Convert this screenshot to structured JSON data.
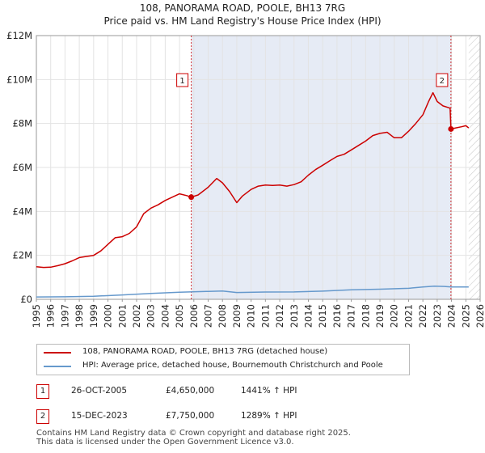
{
  "chart_data": {
    "type": "line",
    "title": "108, PANORAMA ROAD, POOLE, BH13 7RG",
    "subtitle": "Price paid vs. HM Land Registry's House Price Index (HPI)",
    "x_range": [
      1995,
      2026
    ],
    "ylim": [
      0,
      12000000
    ],
    "y_ticks": [
      0,
      2000000,
      4000000,
      6000000,
      8000000,
      10000000,
      12000000
    ],
    "y_tick_labels": [
      "£0",
      "£2M",
      "£4M",
      "£6M",
      "£8M",
      "£10M",
      "£12M"
    ],
    "x_ticks": [
      1995,
      1996,
      1997,
      1998,
      1999,
      2000,
      2001,
      2002,
      2003,
      2004,
      2005,
      2006,
      2007,
      2008,
      2009,
      2010,
      2011,
      2012,
      2013,
      2014,
      2015,
      2016,
      2017,
      2018,
      2019,
      2020,
      2021,
      2022,
      2023,
      2024,
      2025,
      2026
    ],
    "grid": true,
    "shaded_range": [
      2005.82,
      2023.96
    ],
    "future_hatch_from": 2025.2,
    "series": [
      {
        "name": "108, PANORAMA ROAD, POOLE, BH13 7RG (detached house)",
        "color": "#cc0000",
        "x": [
          1995.0,
          1995.5,
          1996.0,
          1996.5,
          1997.0,
          1997.5,
          1998.0,
          1998.5,
          1999.0,
          1999.5,
          2000.0,
          2000.5,
          2001.0,
          2001.5,
          2002.0,
          2002.5,
          2003.0,
          2003.5,
          2004.0,
          2004.5,
          2005.0,
          2005.5,
          2005.82,
          2006.3,
          2007.0,
          2007.6,
          2008.0,
          2008.5,
          2009.0,
          2009.4,
          2010.0,
          2010.5,
          2011.0,
          2011.5,
          2012.0,
          2012.5,
          2013.0,
          2013.5,
          2014.0,
          2014.5,
          2015.0,
          2015.5,
          2016.0,
          2016.5,
          2017.0,
          2017.5,
          2018.0,
          2018.5,
          2019.0,
          2019.5,
          2020.0,
          2020.5,
          2021.0,
          2021.5,
          2022.0,
          2022.4,
          2022.7,
          2023.0,
          2023.4,
          2023.9,
          2023.96,
          2024.3,
          2024.7,
          2025.0,
          2025.2
        ],
        "values": [
          1480000,
          1450000,
          1460000,
          1530000,
          1620000,
          1750000,
          1900000,
          1950000,
          2000000,
          2200000,
          2500000,
          2800000,
          2850000,
          3000000,
          3300000,
          3900000,
          4150000,
          4300000,
          4500000,
          4650000,
          4800000,
          4720000,
          4650000,
          4750000,
          5100000,
          5500000,
          5300000,
          4900000,
          4400000,
          4700000,
          5000000,
          5150000,
          5200000,
          5180000,
          5200000,
          5150000,
          5220000,
          5350000,
          5650000,
          5900000,
          6100000,
          6300000,
          6500000,
          6600000,
          6800000,
          7000000,
          7200000,
          7450000,
          7550000,
          7600000,
          7350000,
          7350000,
          7650000,
          8000000,
          8400000,
          9000000,
          9400000,
          9000000,
          8800000,
          8700000,
          7750000,
          7800000,
          7850000,
          7900000,
          7800000
        ]
      },
      {
        "name": "HPI: Average price, detached house, Bournemouth Christchurch and Poole",
        "color": "#6699cc",
        "x": [
          1995,
          1997,
          1999,
          2001,
          2003,
          2005,
          2007,
          2008,
          2009,
          2011,
          2013,
          2015,
          2017,
          2019,
          2021,
          2022,
          2022.8,
          2023.5,
          2024,
          2025,
          2025.2
        ],
        "values": [
          105000,
          115000,
          140000,
          200000,
          270000,
          320000,
          360000,
          380000,
          310000,
          330000,
          335000,
          370000,
          430000,
          460000,
          500000,
          560000,
          600000,
          585000,
          560000,
          560000,
          560000
        ]
      }
    ],
    "annotations": [
      {
        "label": "1",
        "x": 2005.82,
        "value": 4650000
      },
      {
        "label": "2",
        "x": 2023.96,
        "value": 7750000
      }
    ]
  },
  "legend": {
    "property_label": "108, PANORAMA ROAD, POOLE, BH13 7RG (detached house)",
    "hpi_label": "HPI: Average price, detached house, Bournemouth Christchurch and Poole",
    "property_color": "#cc0000",
    "hpi_color": "#6699cc"
  },
  "sales": [
    {
      "label": "1",
      "date": "26-OCT-2005",
      "price": "£4,650,000",
      "pct": "1441% ↑ HPI"
    },
    {
      "label": "2",
      "date": "15-DEC-2023",
      "price": "£7,750,000",
      "pct": "1289% ↑ HPI"
    }
  ],
  "footer": {
    "line1": "Contains HM Land Registry data © Crown copyright and database right 2025.",
    "line2": "This data is licensed under the Open Government Licence v3.0."
  }
}
